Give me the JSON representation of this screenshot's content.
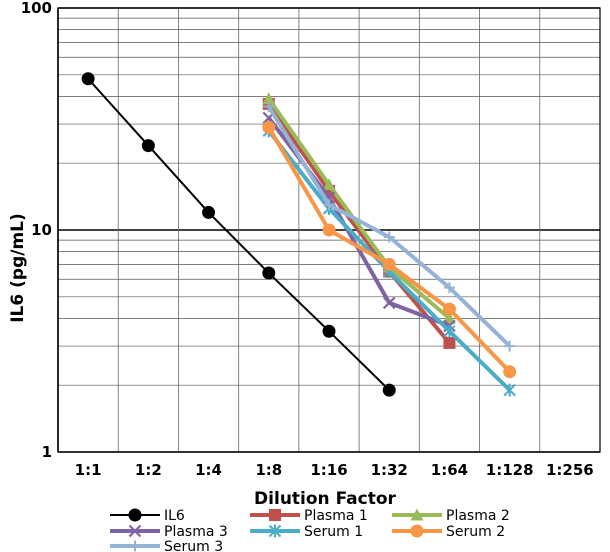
{
  "chart_data": {
    "type": "line",
    "xlabel": "Dilution Factor",
    "ylabel": "IL6 (pg/mL)",
    "y_scale": "log",
    "ylim": [
      1,
      100
    ],
    "y_ticks": [
      "1",
      "10",
      "100"
    ],
    "categories": [
      "1:1",
      "1:2",
      "1:4",
      "1:8",
      "1:16",
      "1:32",
      "1:64",
      "1:128",
      "1:256"
    ],
    "grid": "major and minor",
    "legend_position": "bottom",
    "series": [
      {
        "name": "IL6",
        "color": "#000000",
        "marker": "circle",
        "x": [
          "1:1",
          "1:2",
          "1:4",
          "1:8",
          "1:16",
          "1:32"
        ],
        "values": [
          48,
          24,
          12,
          6.4,
          3.5,
          1.9
        ]
      },
      {
        "name": "Plasma 1",
        "color": "#c0504d",
        "marker": "square",
        "x": [
          "1:8",
          "1:16",
          "1:32",
          "1:64"
        ],
        "values": [
          37,
          15,
          6.5,
          3.1
        ]
      },
      {
        "name": "Plasma 2",
        "color": "#9bbb59",
        "marker": "triangle",
        "x": [
          "1:8",
          "1:16",
          "1:32",
          "1:64"
        ],
        "values": [
          39,
          16,
          6.8,
          4.0
        ]
      },
      {
        "name": "Plasma 3",
        "color": "#8064a2",
        "marker": "x",
        "x": [
          "1:8",
          "1:16",
          "1:32",
          "1:64"
        ],
        "values": [
          32,
          14,
          4.7,
          3.7
        ]
      },
      {
        "name": "Serum 1",
        "color": "#4bacc6",
        "marker": "star",
        "x": [
          "1:8",
          "1:16",
          "1:32",
          "1:64",
          "1:128"
        ],
        "values": [
          28,
          12.5,
          6.5,
          3.5,
          1.9
        ]
      },
      {
        "name": "Serum 2",
        "color": "#f79646",
        "marker": "circle",
        "x": [
          "1:8",
          "1:16",
          "1:32",
          "1:64",
          "1:128"
        ],
        "values": [
          29,
          10,
          7.0,
          4.4,
          2.3
        ]
      },
      {
        "name": "Serum 3",
        "color": "#95b3d7",
        "marker": "plus",
        "x": [
          "1:8",
          "1:16",
          "1:32",
          "1:64",
          "1:128"
        ],
        "values": [
          36,
          13,
          9.3,
          5.5,
          3.0
        ]
      }
    ]
  }
}
